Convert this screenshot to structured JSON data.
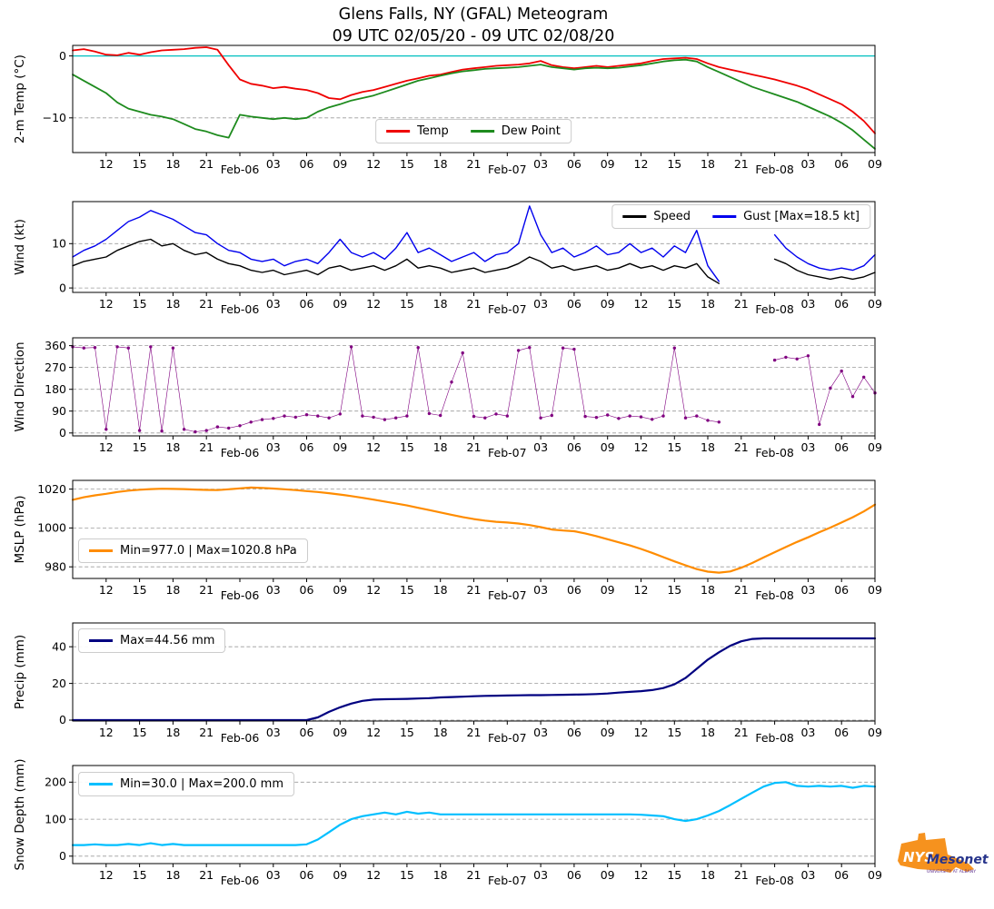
{
  "header": {
    "title": "Glens Falls, NY (GFAL) Meteogram",
    "subtitle": "09 UTC 02/05/20 - 09 UTC 02/08/20"
  },
  "logo": {
    "nys": "NYS",
    "mesonet": "Mesonet",
    "tagline": "UNIVERSITY AT ALBANY",
    "orange": "#f6921e",
    "blue": "#27348b"
  },
  "x_axis": {
    "start": 9,
    "end": 81,
    "step": 1,
    "ticks": [
      {
        "h": 12,
        "label": "12"
      },
      {
        "h": 15,
        "label": "15"
      },
      {
        "h": 18,
        "label": "18"
      },
      {
        "h": 21,
        "label": "21"
      },
      {
        "h": 24,
        "label": "Feb-06",
        "date": true
      },
      {
        "h": 27,
        "label": "03"
      },
      {
        "h": 30,
        "label": "06"
      },
      {
        "h": 33,
        "label": "09"
      },
      {
        "h": 36,
        "label": "12"
      },
      {
        "h": 39,
        "label": "15"
      },
      {
        "h": 42,
        "label": "18"
      },
      {
        "h": 45,
        "label": "21"
      },
      {
        "h": 48,
        "label": "Feb-07",
        "date": true
      },
      {
        "h": 51,
        "label": "03"
      },
      {
        "h": 54,
        "label": "06"
      },
      {
        "h": 57,
        "label": "09"
      },
      {
        "h": 60,
        "label": "12"
      },
      {
        "h": 63,
        "label": "15"
      },
      {
        "h": 66,
        "label": "18"
      },
      {
        "h": 69,
        "label": "21"
      },
      {
        "h": 72,
        "label": "Feb-08",
        "date": true
      },
      {
        "h": 75,
        "label": "03"
      },
      {
        "h": 78,
        "label": "06"
      },
      {
        "h": 81,
        "label": "09"
      }
    ]
  },
  "chart_data": [
    {
      "type": "line",
      "ylabel": "2-m Temp (°C)",
      "ylim": [
        -15.6,
        1.7
      ],
      "yticks": [
        {
          "v": 0,
          "label": "0"
        },
        {
          "v": -10,
          "label": "−10"
        }
      ],
      "ref_lines": [
        {
          "y": 0,
          "color": "#00bfbf"
        }
      ],
      "legend": {
        "loc": "lower center",
        "entries": [
          {
            "label": "Temp",
            "color": "#ef0000"
          },
          {
            "label": "Dew Point",
            "color": "#1e8b1e"
          }
        ]
      },
      "series": [
        {
          "name": "Temp",
          "color": "#ef0000",
          "lw": 1.8,
          "y": [
            0.9,
            1.1,
            0.7,
            0.2,
            0.1,
            0.5,
            0.2,
            0.6,
            0.9,
            1.0,
            1.1,
            1.3,
            1.4,
            1.0,
            -1.5,
            -3.8,
            -4.5,
            -4.8,
            -5.2,
            -5.0,
            -5.3,
            -5.5,
            -6.0,
            -6.8,
            -7.0,
            -6.3,
            -5.8,
            -5.5,
            -5.0,
            -4.5,
            -4.0,
            -3.6,
            -3.2,
            -3.0,
            -2.6,
            -2.2,
            -2.0,
            -1.8,
            -1.6,
            -1.5,
            -1.4,
            -1.2,
            -0.8,
            -1.5,
            -1.8,
            -2.0,
            -1.8,
            -1.6,
            -1.8,
            -1.6,
            -1.4,
            -1.2,
            -0.8,
            -0.5,
            -0.4,
            -0.3,
            -0.5,
            -1.2,
            -1.8,
            -2.2,
            -2.6,
            -3.0,
            -3.4,
            -3.8,
            -4.3,
            -4.8,
            -5.4,
            -6.2,
            -7.0,
            -7.8,
            -9.0,
            -10.5,
            -12.5
          ]
        },
        {
          "name": "Dew Point",
          "color": "#1e8b1e",
          "lw": 1.8,
          "y": [
            -3.0,
            -4.0,
            -5.0,
            -6.0,
            -7.5,
            -8.5,
            -9.0,
            -9.5,
            -9.8,
            -10.2,
            -11.0,
            -11.8,
            -12.2,
            -12.8,
            -13.2,
            -9.5,
            -9.8,
            -10.0,
            -10.2,
            -10.0,
            -10.2,
            -10.0,
            -9.0,
            -8.3,
            -7.8,
            -7.2,
            -6.8,
            -6.4,
            -5.8,
            -5.2,
            -4.6,
            -4.0,
            -3.6,
            -3.2,
            -2.8,
            -2.5,
            -2.3,
            -2.1,
            -2.0,
            -1.9,
            -1.8,
            -1.6,
            -1.4,
            -1.8,
            -2.0,
            -2.2,
            -2.0,
            -1.9,
            -2.0,
            -1.9,
            -1.7,
            -1.5,
            -1.2,
            -0.9,
            -0.7,
            -0.6,
            -0.9,
            -1.8,
            -2.6,
            -3.4,
            -4.2,
            -5.0,
            -5.6,
            -6.2,
            -6.8,
            -7.4,
            -8.2,
            -9.0,
            -9.8,
            -10.8,
            -12.0,
            -13.5,
            -15.0
          ]
        }
      ]
    },
    {
      "type": "line",
      "ylabel": "Wind (kt)",
      "ylim": [
        -1,
        19.5
      ],
      "yticks": [
        {
          "v": 10,
          "label": "10"
        },
        {
          "v": 0,
          "label": "0"
        }
      ],
      "legend": {
        "loc": "upper right",
        "entries": [
          {
            "label": "Speed",
            "color": "#000000"
          },
          {
            "label": "Gust [Max=18.5 kt]",
            "color": "#0000ee"
          }
        ]
      },
      "series": [
        {
          "name": "Speed",
          "color": "#000000",
          "lw": 1.4,
          "y": [
            5.0,
            6.0,
            6.5,
            7.0,
            8.5,
            9.5,
            10.5,
            11.0,
            9.5,
            10.0,
            8.5,
            7.5,
            8.0,
            6.5,
            5.5,
            5.0,
            4.0,
            3.5,
            4.0,
            3.0,
            3.5,
            4.0,
            3.0,
            4.5,
            5.0,
            4.0,
            4.5,
            5.0,
            4.0,
            5.0,
            6.5,
            4.5,
            5.0,
            4.5,
            3.5,
            4.0,
            4.5,
            3.5,
            4.0,
            4.5,
            5.5,
            7.0,
            6.0,
            4.5,
            5.0,
            4.0,
            4.5,
            5.0,
            4.0,
            4.5,
            5.5,
            4.5,
            5.0,
            4.0,
            5.0,
            4.5,
            5.5,
            2.5,
            1.0,
            null,
            null,
            null,
            null,
            6.5,
            5.5,
            4.0,
            3.0,
            2.5,
            2.0,
            2.5,
            2.0,
            2.5,
            3.5
          ]
        },
        {
          "name": "Gust",
          "color": "#0000ee",
          "lw": 1.4,
          "y": [
            7.0,
            8.5,
            9.5,
            11.0,
            13.0,
            15.0,
            16.0,
            17.5,
            16.5,
            15.5,
            14.0,
            12.5,
            12.0,
            10.0,
            8.5,
            8.0,
            6.5,
            6.0,
            6.5,
            5.0,
            6.0,
            6.5,
            5.5,
            8.0,
            11.0,
            8.0,
            7.0,
            8.0,
            6.5,
            9.0,
            12.5,
            8.0,
            9.0,
            7.5,
            6.0,
            7.0,
            8.0,
            6.0,
            7.5,
            8.0,
            10.0,
            18.5,
            12.0,
            8.0,
            9.0,
            7.0,
            8.0,
            9.5,
            7.5,
            8.0,
            10.0,
            8.0,
            9.0,
            7.0,
            9.5,
            8.0,
            13.0,
            5.0,
            1.5,
            null,
            null,
            null,
            null,
            12.0,
            9.0,
            7.0,
            5.5,
            4.5,
            4.0,
            4.5,
            4.0,
            5.0,
            7.5
          ]
        }
      ]
    },
    {
      "type": "scatter",
      "ylabel": "Wind Direction",
      "ylim": [
        -12,
        392
      ],
      "yticks": [
        {
          "v": 360,
          "label": "360"
        },
        {
          "v": 270,
          "label": "270"
        },
        {
          "v": 180,
          "label": "180"
        },
        {
          "v": 90,
          "label": "90"
        },
        {
          "v": 0,
          "label": "0"
        }
      ],
      "series": [
        {
          "name": "Direction",
          "color": "#800080",
          "lw": 0.6,
          "marker": true,
          "y": [
            355,
            350,
            352,
            15,
            355,
            350,
            10,
            355,
            8,
            350,
            15,
            5,
            10,
            25,
            20,
            30,
            45,
            55,
            60,
            70,
            65,
            75,
            70,
            62,
            78,
            355,
            70,
            65,
            55,
            62,
            70,
            352,
            80,
            72,
            210,
            330,
            68,
            62,
            78,
            70,
            340,
            352,
            62,
            72,
            350,
            345,
            68,
            64,
            74,
            60,
            70,
            66,
            56,
            70,
            350,
            62,
            70,
            52,
            45,
            null,
            null,
            null,
            null,
            300,
            312,
            305,
            318,
            35,
            185,
            255,
            150,
            230,
            165
          ]
        }
      ]
    },
    {
      "type": "line",
      "ylabel": "MSLP (hPa)",
      "ylim": [
        974,
        1024.5
      ],
      "yticks": [
        {
          "v": 1020,
          "label": "1020"
        },
        {
          "v": 1000,
          "label": "1000"
        },
        {
          "v": 980,
          "label": "980"
        }
      ],
      "legend": {
        "loc": "center left",
        "entries": [
          {
            "label": "Min=977.0 | Max=1020.8 hPa",
            "color": "#ff8c00"
          }
        ]
      },
      "series": [
        {
          "name": "MSLP",
          "color": "#ff8c00",
          "lw": 2.2,
          "y": [
            1014.5,
            1015.8,
            1016.8,
            1017.6,
            1018.5,
            1019.2,
            1019.7,
            1020.0,
            1020.2,
            1020.1,
            1020.0,
            1019.8,
            1019.6,
            1019.5,
            1019.9,
            1020.4,
            1020.8,
            1020.6,
            1020.3,
            1019.9,
            1019.5,
            1019.0,
            1018.5,
            1017.9,
            1017.2,
            1016.4,
            1015.5,
            1014.6,
            1013.6,
            1012.6,
            1011.6,
            1010.4,
            1009.2,
            1008.0,
            1006.8,
            1005.6,
            1004.6,
            1003.8,
            1003.2,
            1002.8,
            1002.3,
            1001.5,
            1000.4,
            999.2,
            998.7,
            998.3,
            997.2,
            995.8,
            994.2,
            992.6,
            991.0,
            989.2,
            987.2,
            985.0,
            982.8,
            980.8,
            978.8,
            977.5,
            977.0,
            977.6,
            979.5,
            982.0,
            984.8,
            987.5,
            990.2,
            992.8,
            995.2,
            997.8,
            1000.2,
            1002.8,
            1005.5,
            1008.5,
            1012.0
          ]
        }
      ]
    },
    {
      "type": "line",
      "ylabel": "Precip (mm)",
      "ylim": [
        -0.5,
        53
      ],
      "yticks": [
        {
          "v": 40,
          "label": "40"
        },
        {
          "v": 20,
          "label": "20"
        },
        {
          "v": 0,
          "label": "0"
        }
      ],
      "legend": {
        "loc": "upper left",
        "entries": [
          {
            "label": "Max=44.56 mm",
            "color": "#000080"
          }
        ]
      },
      "series": [
        {
          "name": "Precip",
          "color": "#000080",
          "lw": 2.2,
          "y": [
            0,
            0,
            0,
            0,
            0,
            0,
            0,
            0,
            0,
            0,
            0,
            0,
            0,
            0,
            0,
            0,
            0,
            0,
            0,
            0,
            0,
            0,
            1.5,
            4.5,
            7,
            9,
            10.5,
            11.2,
            11.4,
            11.5,
            11.6,
            11.8,
            12,
            12.4,
            12.6,
            12.8,
            13,
            13.2,
            13.3,
            13.4,
            13.5,
            13.6,
            13.6,
            13.7,
            13.8,
            13.9,
            14,
            14.2,
            14.5,
            15,
            15.4,
            15.8,
            16.4,
            17.5,
            19.5,
            23,
            28,
            33,
            37,
            40.5,
            43,
            44.3,
            44.56,
            44.56,
            44.56,
            44.56,
            44.56,
            44.56,
            44.56,
            44.56,
            44.56,
            44.56,
            44.56
          ]
        }
      ]
    },
    {
      "type": "line",
      "ylabel": "Snow Depth (mm)",
      "ylim": [
        -20,
        245
      ],
      "yticks": [
        {
          "v": 200,
          "label": "200"
        },
        {
          "v": 100,
          "label": "100"
        },
        {
          "v": 0,
          "label": "0"
        }
      ],
      "legend": {
        "loc": "upper left",
        "entries": [
          {
            "label": "Min=30.0 | Max=200.0 mm",
            "color": "#00bfff"
          }
        ]
      },
      "series": [
        {
          "name": "Snow Depth",
          "color": "#00bfff",
          "lw": 2.2,
          "y": [
            30,
            30,
            32,
            30,
            30,
            33,
            30,
            35,
            30,
            33,
            30,
            30,
            30,
            30,
            30,
            30,
            30,
            30,
            30,
            30,
            30,
            32,
            45,
            65,
            85,
            100,
            108,
            113,
            118,
            113,
            120,
            115,
            118,
            113,
            113,
            113,
            113,
            113,
            113,
            113,
            113,
            113,
            113,
            113,
            113,
            113,
            113,
            113,
            113,
            113,
            113,
            112,
            110,
            108,
            100,
            95,
            100,
            110,
            122,
            138,
            155,
            172,
            188,
            198,
            200,
            190,
            188,
            190,
            188,
            190,
            185,
            190,
            188
          ]
        }
      ]
    }
  ]
}
